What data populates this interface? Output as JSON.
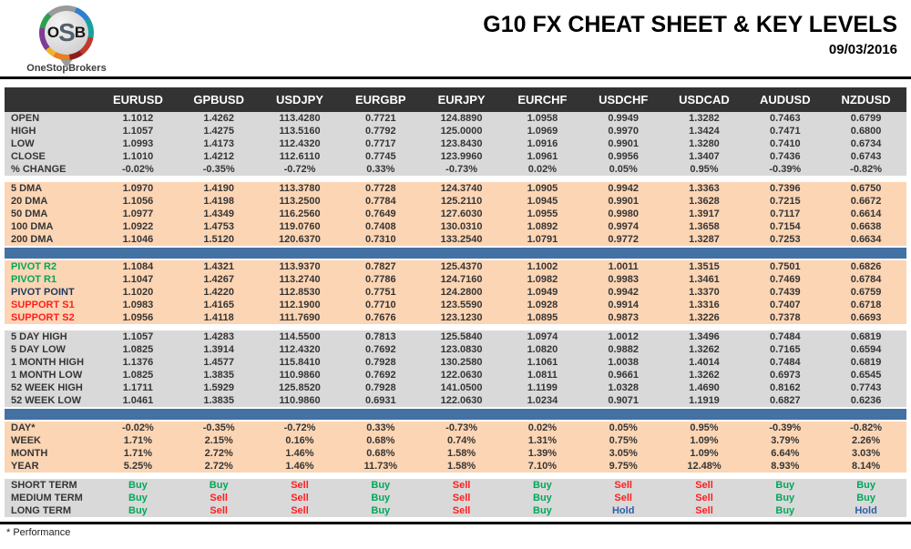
{
  "logo": {
    "o": "O",
    "s": "S",
    "b": "B",
    "brand": "OneStopBrokers"
  },
  "header": {
    "title": "G10 FX CHEAT SHEET & KEY LEVELS",
    "date": "09/03/2016"
  },
  "footer": {
    "note": "* Performance"
  },
  "colors": {
    "header_bg": "#333333",
    "gray_row": "#d9d9d9",
    "peach_row": "#fcd5b4",
    "divider": "#4471a3",
    "buy": "#00a859",
    "sell": "#ff1f1f",
    "hold": "#2e5fa8",
    "pivot_resistance": "#00a859",
    "pivot_point": "#1f3864",
    "pivot_support": "#ff1f1f"
  },
  "table": {
    "columns": [
      "EURUSD",
      "GPBUSD",
      "USDJPY",
      "EURGBP",
      "EURJPY",
      "EURCHF",
      "USDCHF",
      "USDCAD",
      "AUDUSD",
      "NZDUSD"
    ],
    "sections": [
      {
        "id": "ohlc",
        "theme": "gray",
        "after": "gap",
        "rows": [
          {
            "label": "OPEN",
            "values": [
              "1.1012",
              "1.4262",
              "113.4280",
              "0.7721",
              "124.8890",
              "1.0958",
              "0.9949",
              "1.3282",
              "0.7463",
              "0.6799"
            ]
          },
          {
            "label": "HIGH",
            "values": [
              "1.1057",
              "1.4275",
              "113.5160",
              "0.7792",
              "125.0000",
              "1.0969",
              "0.9970",
              "1.3424",
              "0.7471",
              "0.6800"
            ]
          },
          {
            "label": "LOW",
            "values": [
              "1.0993",
              "1.4173",
              "112.4320",
              "0.7717",
              "123.8430",
              "1.0916",
              "0.9901",
              "1.3280",
              "0.7410",
              "0.6734"
            ]
          },
          {
            "label": "CLOSE",
            "values": [
              "1.1010",
              "1.4212",
              "112.6110",
              "0.7745",
              "123.9960",
              "1.0961",
              "0.9956",
              "1.3407",
              "0.7436",
              "0.6743"
            ]
          },
          {
            "label": "% CHANGE",
            "values": [
              "-0.02%",
              "-0.35%",
              "-0.72%",
              "0.33%",
              "-0.73%",
              "0.02%",
              "0.05%",
              "0.95%",
              "-0.39%",
              "-0.82%"
            ]
          }
        ]
      },
      {
        "id": "dma",
        "theme": "peach",
        "after": "divider",
        "rows": [
          {
            "label": "5 DMA",
            "values": [
              "1.0970",
              "1.4190",
              "113.3780",
              "0.7728",
              "124.3740",
              "1.0905",
              "0.9942",
              "1.3363",
              "0.7396",
              "0.6750"
            ]
          },
          {
            "label": "20 DMA",
            "values": [
              "1.1056",
              "1.4198",
              "113.2500",
              "0.7784",
              "125.2110",
              "1.0945",
              "0.9901",
              "1.3628",
              "0.7215",
              "0.6672"
            ]
          },
          {
            "label": "50 DMA",
            "values": [
              "1.0977",
              "1.4349",
              "116.2560",
              "0.7649",
              "127.6030",
              "1.0955",
              "0.9980",
              "1.3917",
              "0.7117",
              "0.6614"
            ]
          },
          {
            "label": "100 DMA",
            "values": [
              "1.0922",
              "1.4753",
              "119.0760",
              "0.7408",
              "130.0310",
              "1.0892",
              "0.9974",
              "1.3658",
              "0.7154",
              "0.6638"
            ]
          },
          {
            "label": "200 DMA",
            "values": [
              "1.1046",
              "1.5120",
              "120.6370",
              "0.7310",
              "133.2540",
              "1.0791",
              "0.9772",
              "1.3287",
              "0.7253",
              "0.6634"
            ]
          }
        ]
      },
      {
        "id": "pivots",
        "theme": "peach",
        "after": "gap",
        "rows": [
          {
            "label": "PIVOT R2",
            "label_color": "#00a859",
            "values": [
              "1.1084",
              "1.4321",
              "113.9370",
              "0.7827",
              "125.4370",
              "1.1002",
              "1.0011",
              "1.3515",
              "0.7501",
              "0.6826"
            ]
          },
          {
            "label": "PIVOT R1",
            "label_color": "#00a859",
            "values": [
              "1.1047",
              "1.4267",
              "113.2740",
              "0.7786",
              "124.7160",
              "1.0982",
              "0.9983",
              "1.3461",
              "0.7469",
              "0.6784"
            ]
          },
          {
            "label": "PIVOT POINT",
            "label_color": "#1f3864",
            "values": [
              "1.1020",
              "1.4220",
              "112.8530",
              "0.7751",
              "124.2800",
              "1.0949",
              "0.9942",
              "1.3370",
              "0.7439",
              "0.6759"
            ]
          },
          {
            "label": "SUPPORT S1",
            "label_color": "#ff1f1f",
            "values": [
              "1.0983",
              "1.4165",
              "112.1900",
              "0.7710",
              "123.5590",
              "1.0928",
              "0.9914",
              "1.3316",
              "0.7407",
              "0.6718"
            ]
          },
          {
            "label": "SUPPORT S2",
            "label_color": "#ff1f1f",
            "values": [
              "1.0956",
              "1.4118",
              "111.7690",
              "0.7676",
              "123.1230",
              "1.0895",
              "0.9873",
              "1.3226",
              "0.7378",
              "0.6693"
            ]
          }
        ]
      },
      {
        "id": "ranges",
        "theme": "gray",
        "after": "divider",
        "rows": [
          {
            "label": "5 DAY HIGH",
            "values": [
              "1.1057",
              "1.4283",
              "114.5500",
              "0.7813",
              "125.5840",
              "1.0974",
              "1.0012",
              "1.3496",
              "0.7484",
              "0.6819"
            ]
          },
          {
            "label": "5 DAY LOW",
            "values": [
              "1.0825",
              "1.3914",
              "112.4320",
              "0.7692",
              "123.0830",
              "1.0820",
              "0.9882",
              "1.3262",
              "0.7165",
              "0.6594"
            ]
          },
          {
            "label": "1 MONTH HIGH",
            "values": [
              "1.1376",
              "1.4577",
              "115.8410",
              "0.7928",
              "130.2580",
              "1.1061",
              "1.0038",
              "1.4014",
              "0.7484",
              "0.6819"
            ]
          },
          {
            "label": "1 MONTH LOW",
            "values": [
              "1.0825",
              "1.3835",
              "110.9860",
              "0.7692",
              "122.0630",
              "1.0811",
              "0.9661",
              "1.3262",
              "0.6973",
              "0.6545"
            ]
          },
          {
            "label": "52 WEEK HIGH",
            "values": [
              "1.1711",
              "1.5929",
              "125.8520",
              "0.7928",
              "141.0500",
              "1.1199",
              "1.0328",
              "1.4690",
              "0.8162",
              "0.7743"
            ]
          },
          {
            "label": "52 WEEK LOW",
            "values": [
              "1.0461",
              "1.3835",
              "110.9860",
              "0.6931",
              "122.0630",
              "1.0234",
              "0.9071",
              "1.1919",
              "0.6827",
              "0.6236"
            ]
          }
        ]
      },
      {
        "id": "performance",
        "theme": "peach",
        "after": "gap",
        "rows": [
          {
            "label": "DAY*",
            "values": [
              "-0.02%",
              "-0.35%",
              "-0.72%",
              "0.33%",
              "-0.73%",
              "0.02%",
              "0.05%",
              "0.95%",
              "-0.39%",
              "-0.82%"
            ]
          },
          {
            "label": "WEEK",
            "values": [
              "1.71%",
              "2.15%",
              "0.16%",
              "0.68%",
              "0.74%",
              "1.31%",
              "0.75%",
              "1.09%",
              "3.79%",
              "2.26%"
            ]
          },
          {
            "label": "MONTH",
            "values": [
              "1.71%",
              "2.72%",
              "1.46%",
              "0.68%",
              "1.58%",
              "1.39%",
              "3.05%",
              "1.09%",
              "6.64%",
              "3.03%"
            ]
          },
          {
            "label": "YEAR",
            "values": [
              "5.25%",
              "2.72%",
              "1.46%",
              "11.73%",
              "1.58%",
              "7.10%",
              "9.75%",
              "12.48%",
              "8.93%",
              "8.14%"
            ]
          }
        ]
      },
      {
        "id": "signals",
        "theme": "gray",
        "signal": true,
        "after": "none",
        "rows": [
          {
            "label": "SHORT TERM",
            "values": [
              "Buy",
              "Buy",
              "Sell",
              "Buy",
              "Sell",
              "Buy",
              "Sell",
              "Sell",
              "Buy",
              "Buy"
            ]
          },
          {
            "label": "MEDIUM TERM",
            "values": [
              "Buy",
              "Sell",
              "Sell",
              "Buy",
              "Sell",
              "Buy",
              "Sell",
              "Sell",
              "Buy",
              "Buy"
            ]
          },
          {
            "label": "LONG TERM",
            "values": [
              "Buy",
              "Sell",
              "Sell",
              "Buy",
              "Sell",
              "Buy",
              "Hold",
              "Sell",
              "Buy",
              "Hold"
            ]
          }
        ]
      }
    ]
  }
}
